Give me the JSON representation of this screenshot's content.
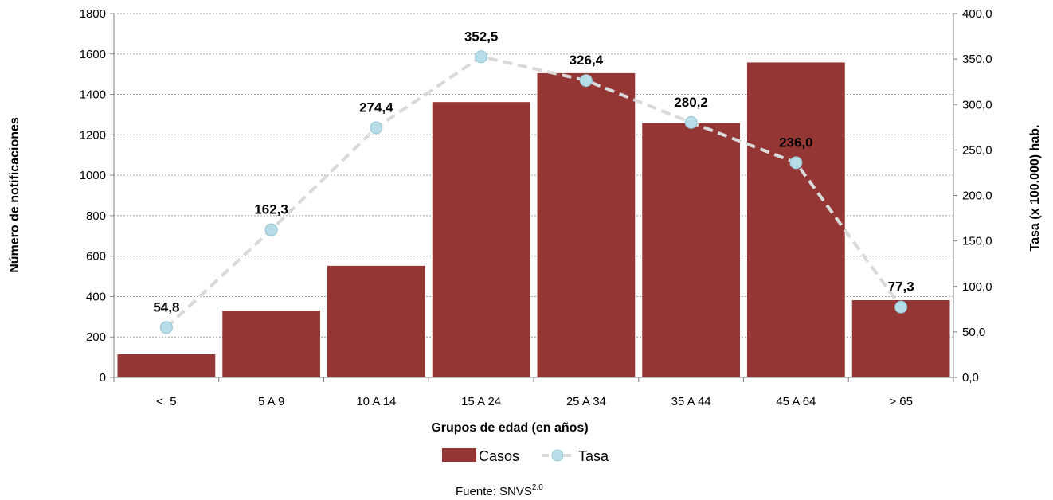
{
  "chart_data": {
    "type": "bar",
    "categories": [
      "<  5",
      "5 A 9",
      "10 A 14",
      "15 A 24",
      "25 A 34",
      "35 A 44",
      "45 A 64",
      "> 65"
    ],
    "series": [
      {
        "name": "Casos",
        "type": "bar",
        "axis": "left",
        "color": "#943634",
        "values": [
          115,
          330,
          552,
          1362,
          1505,
          1258,
          1558,
          382
        ]
      },
      {
        "name": "Tasa",
        "type": "line",
        "axis": "right",
        "color": "#d9d9d9",
        "marker_color": "#b7dde8",
        "line_style": "dashed",
        "values": [
          54.8,
          162.3,
          274.4,
          352.5,
          326.4,
          280.2,
          236.0,
          77.3
        ],
        "labels": [
          "54,8",
          "162,3",
          "274,4",
          "352,5",
          "326,4",
          "280,2",
          "236,0",
          "77,3"
        ]
      }
    ],
    "xlabel": "Grupos de edad (en años)",
    "ylabel": "Número de notificaciones",
    "y2label": "Tasa (x 100.000) hab.",
    "ylim": [
      0,
      1800
    ],
    "y_ticks": [
      "0",
      "200",
      "400",
      "600",
      "800",
      "1000",
      "1200",
      "1400",
      "1600",
      "1800"
    ],
    "y2lim": [
      0,
      400
    ],
    "y2_ticks": [
      "0,0",
      "50,0",
      "100,0",
      "150,0",
      "200,0",
      "250,0",
      "300,0",
      "350,0",
      "400,0"
    ],
    "grid": true,
    "legend": {
      "position": "bottom",
      "entries": [
        "Casos",
        "Tasa"
      ]
    },
    "source": {
      "text": "Fuente: SNVS",
      "superscript": "2.0"
    }
  }
}
